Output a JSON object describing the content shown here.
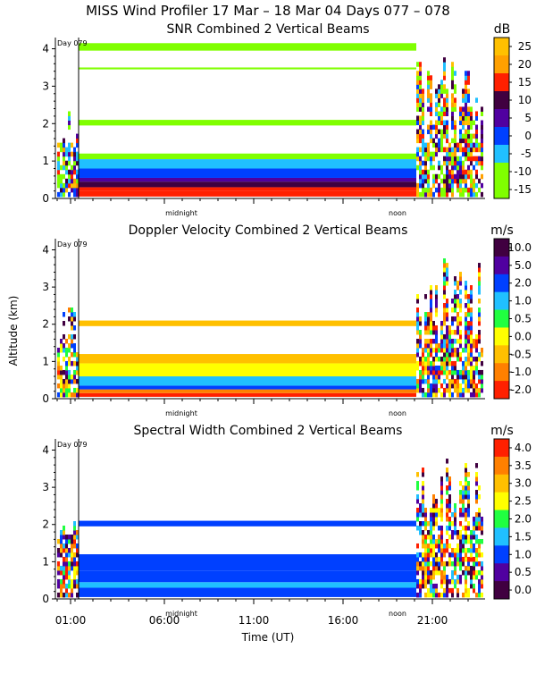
{
  "figure": {
    "title": "MISS Wind Profiler  17 Mar – 18 Mar 04 Days 077 – 078",
    "ylabel": "Altitude (km)",
    "xlabel": "Time (UT)",
    "day_marker": "Day 079",
    "midnight_label": "midnight",
    "noon_label": "noon"
  },
  "chart_data": [
    {
      "type": "heatmap",
      "title": "SNR Combined 2 Vertical Beams",
      "units": "dB",
      "y_ticks": [
        0,
        1,
        2,
        3,
        4
      ],
      "ylim": [
        0,
        4.3
      ],
      "x_tick_labels": [],
      "colorbar_labels": [
        "25",
        "20",
        "15",
        "10",
        "5",
        "0",
        "-5",
        "-10",
        "-15"
      ],
      "colorbar_colors": [
        "#ffc000",
        "#ffa000",
        "#ff2000",
        "#400040",
        "#5000a0",
        "#0040ff",
        "#20c0ff",
        "#80ff00",
        "#80ff00"
      ],
      "bands": [
        {
          "y0": 0.05,
          "y1": 0.2,
          "color": "#ff2000"
        },
        {
          "y0": 0.2,
          "y1": 0.3,
          "color": "#ff2000"
        },
        {
          "y0": 0.3,
          "y1": 0.45,
          "color": "#400040"
        },
        {
          "y0": 0.45,
          "y1": 0.55,
          "color": "#5000a0"
        },
        {
          "y0": 0.55,
          "y1": 0.8,
          "color": "#0040ff"
        },
        {
          "y0": 0.8,
          "y1": 1.05,
          "color": "#20c0ff"
        },
        {
          "y0": 1.05,
          "y1": 1.2,
          "color": "#80ff00"
        },
        {
          "y0": 1.95,
          "y1": 2.1,
          "color": "#80ff00"
        },
        {
          "y0": 3.45,
          "y1": 3.5,
          "color": "#80ff00"
        },
        {
          "y0": 3.95,
          "y1": 4.15,
          "color": "#80ff00"
        }
      ]
    },
    {
      "type": "heatmap",
      "title": "Doppler Velocity Combined 2 Vertical Beams",
      "units": "m/s",
      "y_ticks": [
        0,
        1,
        2,
        3,
        4
      ],
      "ylim": [
        0,
        4.3
      ],
      "x_tick_labels": [],
      "colorbar_labels": [
        "10.0",
        "5.0",
        "2.0",
        "1.0",
        "0.5",
        "0.0",
        "-0.5",
        "-1.0",
        "-2.0"
      ],
      "colorbar_colors": [
        "#400040",
        "#5000a0",
        "#0040ff",
        "#20c0ff",
        "#20ff40",
        "#ffff00",
        "#ffc000",
        "#ff8000",
        "#ff2000"
      ],
      "bands": [
        {
          "y0": 0.05,
          "y1": 0.15,
          "color": "#ff2000"
        },
        {
          "y0": 0.15,
          "y1": 0.25,
          "color": "#ff8000"
        },
        {
          "y0": 0.25,
          "y1": 0.35,
          "color": "#0040ff"
        },
        {
          "y0": 0.35,
          "y1": 0.6,
          "color": "#20c0ff"
        },
        {
          "y0": 0.6,
          "y1": 0.95,
          "color": "#ffff00"
        },
        {
          "y0": 0.95,
          "y1": 1.2,
          "color": "#ffc000"
        },
        {
          "y0": 1.95,
          "y1": 2.1,
          "color": "#ffc000"
        }
      ]
    },
    {
      "type": "heatmap",
      "title": "Spectral Width Combined 2 Vertical Beams",
      "units": "m/s",
      "y_ticks": [
        0,
        1,
        2,
        3,
        4
      ],
      "ylim": [
        0,
        4.3
      ],
      "x_tick_labels": [
        "01:00",
        "06:00",
        "11:00",
        "16:00",
        "21:00"
      ],
      "colorbar_labels": [
        "4.0",
        "3.5",
        "3.0",
        "2.5",
        "2.0",
        "1.5",
        "1.0",
        "0.5",
        "0.0"
      ],
      "colorbar_colors": [
        "#ff2000",
        "#ff8000",
        "#ffc000",
        "#ffff00",
        "#20ff40",
        "#20c0ff",
        "#0040ff",
        "#5000a0",
        "#400040"
      ],
      "bands": [
        {
          "y0": 0.05,
          "y1": 0.3,
          "color": "#0040ff"
        },
        {
          "y0": 0.3,
          "y1": 0.45,
          "color": "#20c0ff"
        },
        {
          "y0": 0.45,
          "y1": 0.75,
          "color": "#0040ff"
        },
        {
          "y0": 0.75,
          "y1": 1.2,
          "color": "#0040ff"
        },
        {
          "y0": 1.95,
          "y1": 2.1,
          "color": "#0040ff"
        }
      ]
    }
  ]
}
